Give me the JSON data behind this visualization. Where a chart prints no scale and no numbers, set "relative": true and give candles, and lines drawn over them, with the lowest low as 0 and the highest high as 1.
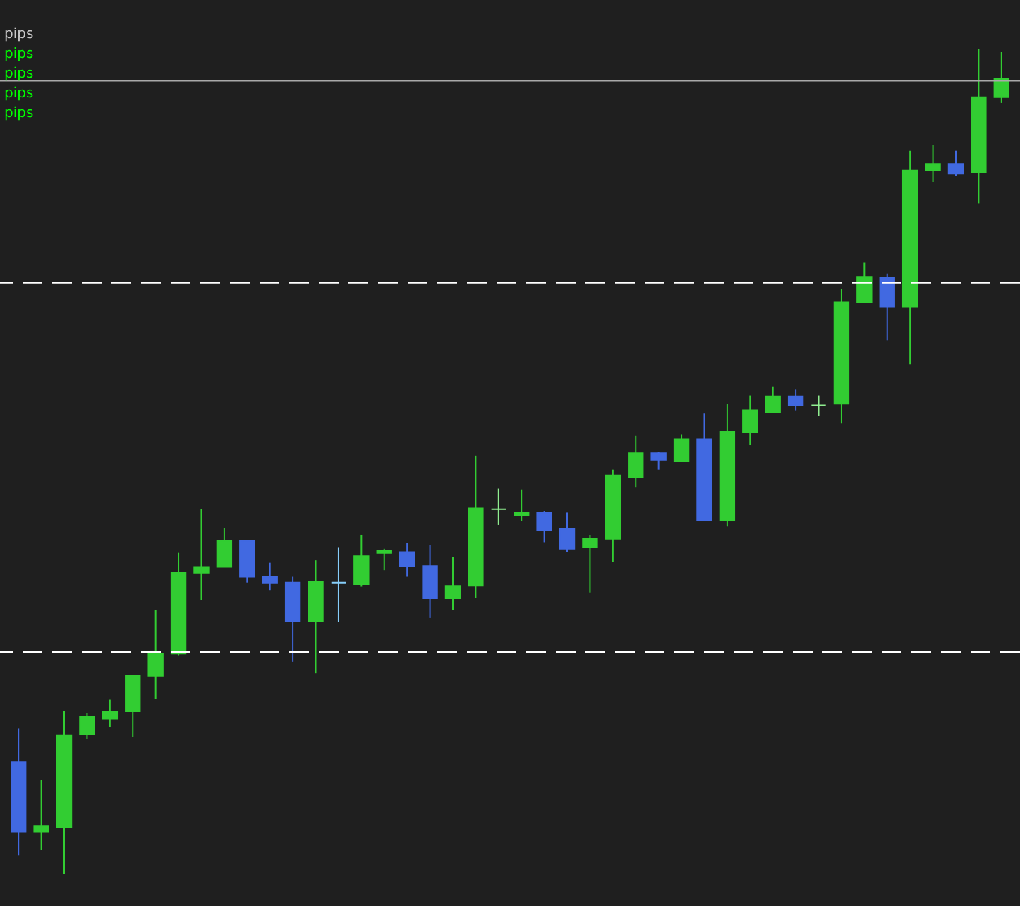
{
  "chart_data": {
    "type": "candlestick",
    "relative": true,
    "categories": [
      null,
      null,
      null,
      null,
      null,
      null,
      null,
      null,
      null,
      null,
      null,
      null,
      null,
      null,
      null,
      null,
      null,
      null,
      null,
      null,
      null,
      null,
      null,
      null,
      null,
      null,
      null,
      null,
      null,
      null,
      null,
      null,
      null,
      null,
      null,
      null,
      null,
      null,
      null,
      null,
      null,
      null,
      null,
      null
    ],
    "ohlc": [
      [
        0.135,
        0.176,
        0.022,
        0.051
      ],
      [
        0.051,
        0.113,
        0.029,
        0.058
      ],
      [
        0.056,
        0.197,
        0,
        0.168
      ],
      [
        0.169,
        0.195,
        0.163,
        0.19
      ],
      [
        0.188,
        0.211,
        0.178,
        0.197
      ],
      [
        0.197,
        0.241,
        0.166,
        0.24
      ],
      [
        0.24,
        0.32,
        0.212,
        0.267
      ],
      [
        0.267,
        0.389,
        0.265,
        0.365
      ],
      [
        0.365,
        0.442,
        0.332,
        0.372
      ],
      [
        0.372,
        0.419,
        0.372,
        0.404
      ],
      [
        0.404,
        0.404,
        0.353,
        0.36
      ],
      [
        0.36,
        0.377,
        0.344,
        0.353
      ],
      [
        0.353,
        0.36,
        0.257,
        0.306
      ],
      [
        0.306,
        0.38,
        0.243,
        0.354
      ],
      [
        0.353,
        0.396,
        0.305,
        0.353
      ],
      [
        0.351,
        0.411,
        0.348,
        0.385
      ],
      [
        0.389,
        0.394,
        0.368,
        0.392
      ],
      [
        0.39,
        0.401,
        0.36,
        0.373
      ],
      [
        0.373,
        0.399,
        0.31,
        0.334
      ],
      [
        0.334,
        0.384,
        0.32,
        0.349
      ],
      [
        0.349,
        0.507,
        0.334,
        0.443
      ],
      [
        0.442,
        0.467,
        0.423,
        0.442
      ],
      [
        0.435,
        0.466,
        0.428,
        0.438
      ],
      [
        0.438,
        0.44,
        0.402,
        0.416
      ],
      [
        0.418,
        0.438,
        0.39,
        0.394
      ],
      [
        0.396,
        0.411,
        0.341,
        0.406
      ],
      [
        0.406,
        0.49,
        0.378,
        0.483
      ],
      [
        0.481,
        0.531,
        0.469,
        0.51
      ],
      [
        0.51,
        0.512,
        0.49,
        0.502
      ],
      [
        0.5,
        0.533,
        0.5,
        0.527
      ],
      [
        0.527,
        0.558,
        0.428,
        0.428
      ],
      [
        0.428,
        0.57,
        0.421,
        0.536
      ],
      [
        0.536,
        0.58,
        0.52,
        0.562
      ],
      [
        0.56,
        0.591,
        0.56,
        0.579
      ],
      [
        0.579,
        0.587,
        0.562,
        0.568
      ],
      [
        0.568,
        0.58,
        0.555,
        0.568
      ],
      [
        0.57,
        0.709,
        0.546,
        0.693
      ],
      [
        0.693,
        0.741,
        0.693,
        0.724
      ],
      [
        0.723,
        0.728,
        0.647,
        0.688
      ],
      [
        0.688,
        0.877,
        0.618,
        0.853
      ],
      [
        0.853,
        0.884,
        0.839,
        0.861
      ],
      [
        0.861,
        0.877,
        0.846,
        0.849
      ],
      [
        0.851,
        1,
        0.813,
        0.942
      ],
      [
        0.942,
        0.997,
        0.935,
        0.964
      ]
    ],
    "colors": [
      "#4169e1",
      "#32cd32",
      "#32cd32",
      "#32cd32",
      "#32cd32",
      "#32cd32",
      "#32cd32",
      "#32cd32",
      "#32cd32",
      "#32cd32",
      "#4169e1",
      "#4169e1",
      "#4169e1",
      "#32cd32",
      "#87cefa",
      "#32cd32",
      "#32cd32",
      "#4169e1",
      "#4169e1",
      "#32cd32",
      "#32cd32",
      "#90ee90",
      "#32cd32",
      "#4169e1",
      "#4169e1",
      "#32cd32",
      "#32cd32",
      "#32cd32",
      "#4169e1",
      "#32cd32",
      "#4169e1",
      "#32cd32",
      "#32cd32",
      "#32cd32",
      "#4169e1",
      "#90ee90",
      "#32cd32",
      "#32cd32",
      "#4169e1",
      "#32cd32",
      "#32cd32",
      "#4169e1",
      "#32cd32",
      "#32cd32"
    ],
    "ref_lines": [
      {
        "axis": "y",
        "value": 0.962,
        "color": "#a9a9a9",
        "line_style": "solid"
      },
      {
        "axis": "y",
        "value": 0.717,
        "color": "#ffffff",
        "line_style": "dashed"
      },
      {
        "axis": "y",
        "value": 0.269,
        "color": "#ffffff",
        "line_style": "dashed"
      }
    ],
    "annotations": [
      "pips",
      "pips",
      "pips",
      "pips",
      "pips"
    ]
  }
}
